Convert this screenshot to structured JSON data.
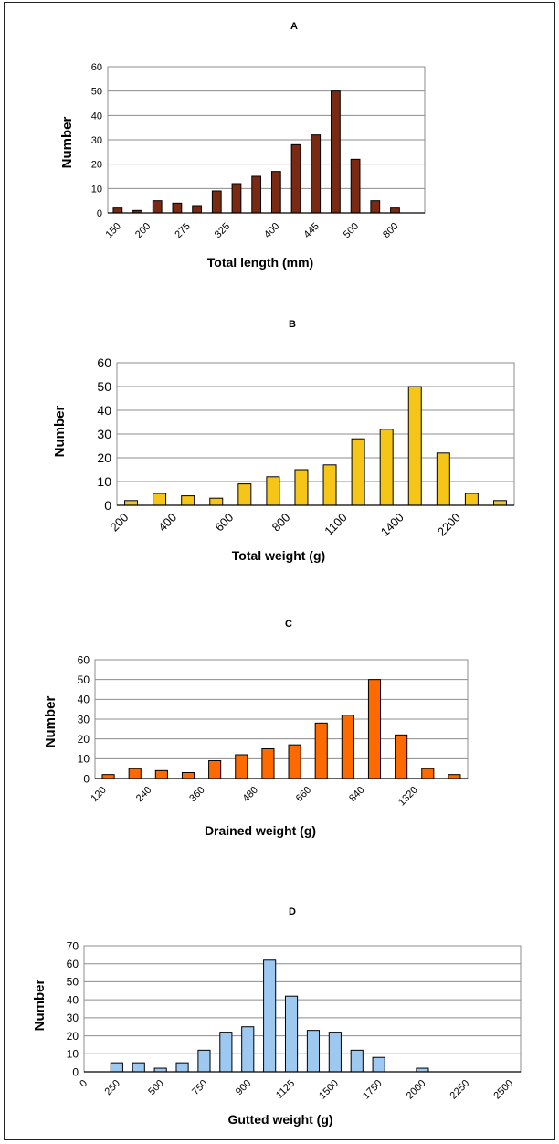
{
  "chart_data": [
    {
      "type": "bar",
      "panel_label": "A",
      "xlabel": "Total length (mm)",
      "ylabel": "Number",
      "ylim": [
        0,
        60
      ],
      "yticks": [
        0,
        10,
        20,
        30,
        40,
        50,
        60
      ],
      "grid": true,
      "bar_color": "#7a2a12",
      "x_tick_labels": [
        "150",
        "200",
        "275",
        "325",
        "400",
        "445",
        "500",
        "800"
      ],
      "values": [
        2,
        1,
        5,
        4,
        3,
        9,
        12,
        15,
        17,
        28,
        32,
        50,
        22,
        5,
        2
      ]
    },
    {
      "type": "bar",
      "panel_label": "B",
      "xlabel": "Total weight (g)",
      "ylabel": "Number",
      "ylim": [
        0,
        60
      ],
      "yticks": [
        0,
        10,
        20,
        30,
        40,
        50,
        60
      ],
      "grid": true,
      "bar_color": "#f5c518",
      "x_tick_labels": [
        "200",
        "400",
        "600",
        "800",
        "1100",
        "1400",
        "2200"
      ],
      "values": [
        2,
        5,
        4,
        3,
        9,
        12,
        15,
        17,
        28,
        32,
        50,
        22,
        5,
        2
      ]
    },
    {
      "type": "bar",
      "panel_label": "C",
      "xlabel": "Drained weight (g)",
      "ylabel": "Number",
      "ylim": [
        0,
        60
      ],
      "yticks": [
        0,
        10,
        20,
        30,
        40,
        50,
        60
      ],
      "grid": true,
      "bar_color": "#ff6a00",
      "x_tick_labels": [
        "120",
        "240",
        "360",
        "480",
        "660",
        "840",
        "1320"
      ],
      "values": [
        2,
        5,
        4,
        3,
        9,
        12,
        15,
        17,
        28,
        32,
        50,
        22,
        5,
        2
      ]
    },
    {
      "type": "bar",
      "panel_label": "D",
      "xlabel": "Gutted weight (g)",
      "ylabel": "Number",
      "ylim": [
        0,
        70
      ],
      "yticks": [
        0,
        10,
        20,
        30,
        40,
        50,
        60,
        70
      ],
      "grid": true,
      "bar_color": "#9dc8f0",
      "x_tick_labels": [
        "0",
        "250",
        "500",
        "750",
        "900",
        "1125",
        "1500",
        "1750",
        "2000",
        "2250",
        "2500"
      ],
      "values": [
        5,
        5,
        2,
        5,
        12,
        22,
        25,
        62,
        42,
        23,
        22,
        12,
        8,
        0,
        2,
        0,
        0,
        0,
        0
      ]
    }
  ]
}
